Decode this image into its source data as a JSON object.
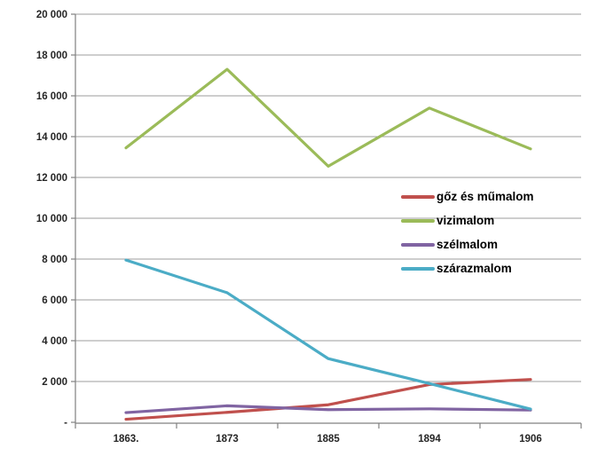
{
  "chart_data": {
    "type": "line",
    "title": "",
    "xlabel": "",
    "ylabel": "",
    "categories": [
      "1863.",
      "1873",
      "1885",
      "1894",
      "1906"
    ],
    "series": [
      {
        "name": "gőz és műmalom",
        "color": "#C0504D",
        "values": [
          150,
          490,
          860,
          1850,
          2100
        ]
      },
      {
        "name": "vizimalom",
        "color": "#9BBB59",
        "values": [
          13450,
          17300,
          12550,
          15400,
          13400
        ]
      },
      {
        "name": "szélmalom",
        "color": "#8064A2",
        "values": [
          475,
          810,
          620,
          660,
          600
        ]
      },
      {
        "name": "szárazmalom",
        "color": "#4BACC6",
        "values": [
          7950,
          6350,
          3120,
          1900,
          650
        ]
      }
    ],
    "ylim": [
      0,
      20000
    ],
    "ytick_step": 2000,
    "ytick_labels": [
      "-",
      "2 000",
      "4 000",
      "6 000",
      "8 000",
      "10 000",
      "12 000",
      "14 000",
      "16 000",
      "18 000",
      "20 000"
    ],
    "grid": true,
    "legend_position": "middle-right",
    "style": {
      "gridline_color": "#9E9E9E",
      "axis_color": "#808080",
      "tick_text_color": "#262626",
      "legend_text_color": "#000000",
      "background": "#FFFFFF"
    }
  }
}
